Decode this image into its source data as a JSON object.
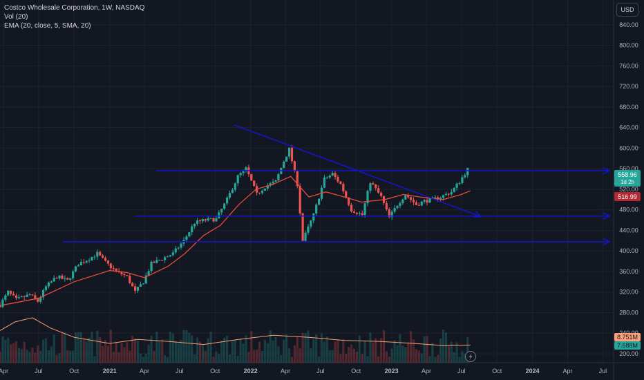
{
  "legend": {
    "title": "Costco Wholesale Corporation, 1W, NASDAQ",
    "vol": "Vol (20)",
    "ema": "EMA (20, close, 5, SMA, 20)"
  },
  "currency_button": "USD",
  "badges": {
    "price": "558.96",
    "countdown": "1d 2h",
    "ema": "516.99",
    "vol1": "8.751M",
    "vol2": "7.688M"
  },
  "colors": {
    "background": "#131722",
    "up": "#26a69a",
    "down": "#ef5350",
    "ema": "#e84a3c",
    "volume_ma": "#f7a07a",
    "trendline": "#1515c8"
  },
  "chart_data": {
    "type": "candlestick",
    "interval": "1W",
    "y_axis": {
      "min": 200,
      "max": 860,
      "ticks": [
        200,
        240,
        280,
        320,
        360,
        400,
        440,
        480,
        520,
        560,
        600,
        640,
        680,
        720,
        760,
        800,
        840
      ],
      "tick_labels": [
        "200.00",
        "240.00",
        "280.00",
        "320.00",
        "360.00",
        "400.00",
        "440.00",
        "480.00",
        "520.00",
        "560.00",
        "600.00",
        "640.00",
        "680.00",
        "720.00",
        "760.00",
        "800.00",
        "840.00"
      ]
    },
    "x_axis": {
      "start": "2020-03-23",
      "end": "2024-07-29",
      "ticks": [
        {
          "date": "2020-04-01",
          "label": "Apr"
        },
        {
          "date": "2020-07-01",
          "label": "Jul"
        },
        {
          "date": "2020-10-01",
          "label": "Oct"
        },
        {
          "date": "2021-01-01",
          "label": "2021"
        },
        {
          "date": "2021-04-01",
          "label": "Apr"
        },
        {
          "date": "2021-07-01",
          "label": "Jul"
        },
        {
          "date": "2021-10-01",
          "label": "Oct"
        },
        {
          "date": "2022-01-01",
          "label": "2022"
        },
        {
          "date": "2022-04-01",
          "label": "Apr"
        },
        {
          "date": "2022-07-01",
          "label": "Jul"
        },
        {
          "date": "2022-10-01",
          "label": "Oct"
        },
        {
          "date": "2023-01-01",
          "label": "2023"
        },
        {
          "date": "2023-04-01",
          "label": "Apr"
        },
        {
          "date": "2023-07-01",
          "label": "Jul"
        },
        {
          "date": "2023-10-01",
          "label": "Oct"
        },
        {
          "date": "2024-01-01",
          "label": "2024"
        },
        {
          "date": "2024-04-01",
          "label": "Apr"
        },
        {
          "date": "2024-07-01",
          "label": "Jul"
        }
      ]
    },
    "price_path": [
      [
        "2020-03-23",
        295
      ],
      [
        "2020-04-13",
        320
      ],
      [
        "2020-05-04",
        305
      ],
      [
        "2020-06-08",
        315
      ],
      [
        "2020-06-29",
        302
      ],
      [
        "2020-07-20",
        330
      ],
      [
        "2020-08-17",
        350
      ],
      [
        "2020-09-14",
        342
      ],
      [
        "2020-10-12",
        375
      ],
      [
        "2020-11-09",
        385
      ],
      [
        "2020-11-30",
        395
      ],
      [
        "2020-12-21",
        378
      ],
      [
        "2021-01-18",
        360
      ],
      [
        "2021-02-15",
        350
      ],
      [
        "2021-03-08",
        320
      ],
      [
        "2021-03-29",
        340
      ],
      [
        "2021-04-19",
        375
      ],
      [
        "2021-05-17",
        385
      ],
      [
        "2021-06-14",
        395
      ],
      [
        "2021-07-12",
        420
      ],
      [
        "2021-08-09",
        455
      ],
      [
        "2021-09-06",
        460
      ],
      [
        "2021-10-04",
        462
      ],
      [
        "2021-11-01",
        500
      ],
      [
        "2021-11-29",
        545
      ],
      [
        "2021-12-20",
        560
      ],
      [
        "2022-01-17",
        510
      ],
      [
        "2022-02-07",
        525
      ],
      [
        "2022-03-07",
        535
      ],
      [
        "2022-03-28",
        575
      ],
      [
        "2022-04-11",
        598
      ],
      [
        "2022-05-02",
        530
      ],
      [
        "2022-05-16",
        420
      ],
      [
        "2022-06-13",
        470
      ],
      [
        "2022-07-11",
        540
      ],
      [
        "2022-08-01",
        550
      ],
      [
        "2022-08-22",
        530
      ],
      [
        "2022-09-19",
        480
      ],
      [
        "2022-10-17",
        470
      ],
      [
        "2022-11-07",
        535
      ],
      [
        "2022-12-05",
        505
      ],
      [
        "2022-12-26",
        465
      ],
      [
        "2023-01-16",
        490
      ],
      [
        "2023-02-06",
        510
      ],
      [
        "2023-03-06",
        490
      ],
      [
        "2023-03-27",
        497
      ],
      [
        "2023-04-17",
        500
      ],
      [
        "2023-05-08",
        505
      ],
      [
        "2023-06-05",
        515
      ],
      [
        "2023-06-26",
        535
      ],
      [
        "2023-07-17",
        559
      ]
    ],
    "ema_path": [
      [
        "2020-04-01",
        295
      ],
      [
        "2020-07-01",
        308
      ],
      [
        "2020-10-01",
        340
      ],
      [
        "2021-01-01",
        362
      ],
      [
        "2021-02-15",
        358
      ],
      [
        "2021-04-01",
        348
      ],
      [
        "2021-06-01",
        370
      ],
      [
        "2021-07-15",
        395
      ],
      [
        "2021-09-01",
        430
      ],
      [
        "2021-10-15",
        450
      ],
      [
        "2021-12-01",
        490
      ],
      [
        "2022-01-15",
        520
      ],
      [
        "2022-03-01",
        530
      ],
      [
        "2022-04-15",
        545
      ],
      [
        "2022-06-01",
        505
      ],
      [
        "2022-07-15",
        515
      ],
      [
        "2022-09-01",
        505
      ],
      [
        "2022-10-15",
        495
      ],
      [
        "2022-12-15",
        500
      ],
      [
        "2023-02-01",
        510
      ],
      [
        "2023-03-15",
        505
      ],
      [
        "2023-05-15",
        500
      ],
      [
        "2023-07-01",
        510
      ],
      [
        "2023-07-24",
        517
      ]
    ],
    "volume_ma_path": [
      [
        "2020-03-23",
        245
      ],
      [
        "2020-05-01",
        262
      ],
      [
        "2020-06-15",
        270
      ],
      [
        "2020-08-01",
        250
      ],
      [
        "2020-10-01",
        232
      ],
      [
        "2021-01-01",
        220
      ],
      [
        "2021-03-15",
        228
      ],
      [
        "2021-06-01",
        224
      ],
      [
        "2021-09-01",
        218
      ],
      [
        "2021-12-01",
        228
      ],
      [
        "2022-03-01",
        236
      ],
      [
        "2022-06-01",
        232
      ],
      [
        "2022-09-01",
        226
      ],
      [
        "2022-12-01",
        224
      ],
      [
        "2023-03-01",
        220
      ],
      [
        "2023-05-15",
        216
      ],
      [
        "2023-07-24",
        217
      ]
    ],
    "horizontal_levels": [
      {
        "price": 556,
        "start": "2021-05-01",
        "arrow": true
      },
      {
        "price": 468,
        "start": "2021-03-08",
        "arrow": true
      },
      {
        "price": 418,
        "start": "2020-09-01",
        "arrow": true
      }
    ],
    "trend_line": {
      "from": [
        "2021-11-20",
        645
      ],
      "to": [
        "2023-08-20",
        467
      ],
      "arrow": true
    },
    "last_price": 558.96,
    "last_ema": 516.99
  }
}
